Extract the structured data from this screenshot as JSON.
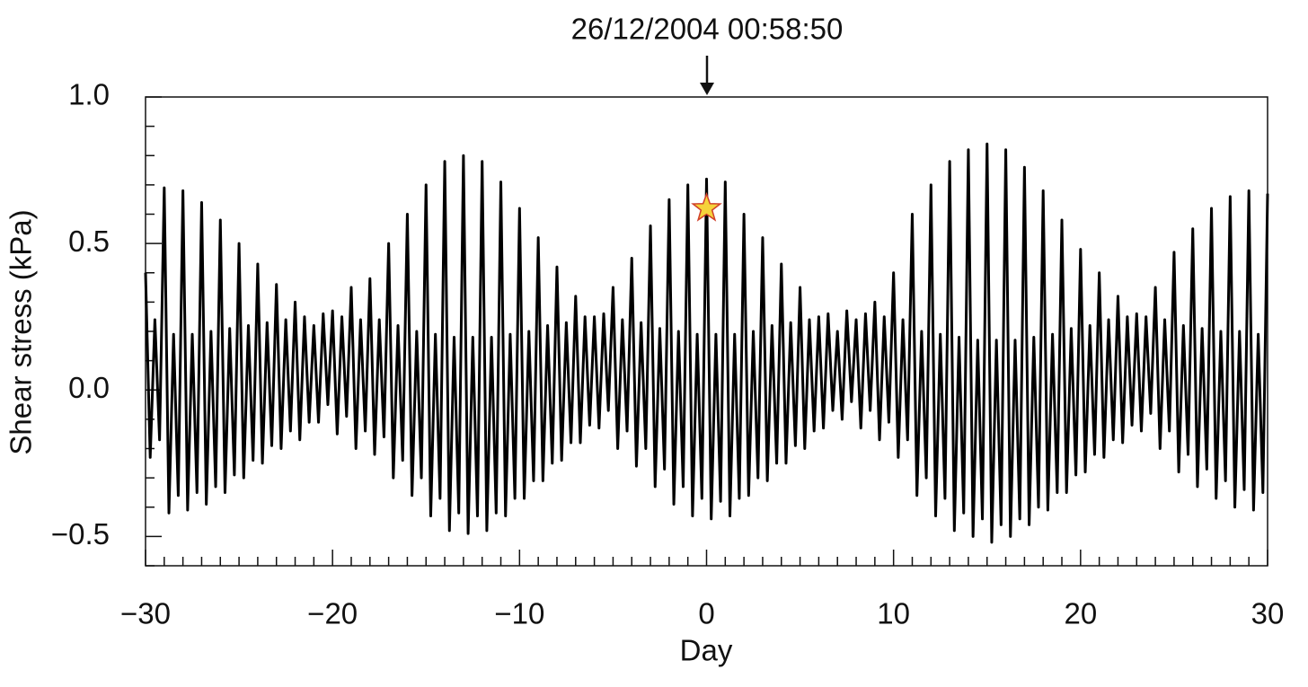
{
  "chart_data": {
    "type": "line",
    "annotation": "26/12/2004 00:58:50",
    "xlabel": "Day",
    "ylabel": "Shear stress (kPa)",
    "xlim": [
      -30,
      30
    ],
    "ylim": [
      -0.6,
      1.0
    ],
    "xticks": [
      {
        "value": -30,
        "label": "−30"
      },
      {
        "value": -20,
        "label": "−20"
      },
      {
        "value": -10,
        "label": "−10"
      },
      0,
      10,
      20,
      30
    ],
    "yticks": [
      {
        "value": -0.5,
        "label": "−0.5"
      },
      {
        "value": 0,
        "label": "0.0"
      },
      0.5,
      {
        "value": 1.0,
        "label": "1.0"
      }
    ],
    "xminorticks": [
      -29,
      -28,
      -27,
      -26,
      -25,
      -24,
      -23,
      -22,
      -21,
      -19,
      -18,
      -17,
      -16,
      -15,
      -14,
      -13,
      -12,
      -11,
      -9,
      -8,
      -7,
      -6,
      -5,
      -4,
      -3,
      -2,
      -1,
      1,
      2,
      3,
      4,
      5,
      6,
      7,
      8,
      9,
      11,
      12,
      13,
      14,
      15,
      16,
      17,
      18,
      19,
      21,
      22,
      23,
      24,
      25,
      26,
      27,
      28,
      29
    ],
    "yminorticks": [
      -0.6,
      -0.4,
      -0.3,
      -0.2,
      -0.1,
      0.1,
      0.2,
      0.3,
      0.4,
      0.6,
      0.7,
      0.8,
      0.9
    ],
    "color": "#000000",
    "event": {
      "x": 0,
      "y": 0.62,
      "color": "#f5d33a"
    },
    "x": [
      -30,
      -29.75,
      -29.5,
      -29.25,
      -29,
      -28.75,
      -28.5,
      -28.25,
      -28,
      -27.75,
      -27.5,
      -27.25,
      -27,
      -26.75,
      -26.5,
      -26.25,
      -26,
      -25.75,
      -25.5,
      -25.25,
      -25,
      -24.75,
      -24.5,
      -24.25,
      -24,
      -23.75,
      -23.5,
      -23.25,
      -23,
      -22.75,
      -22.5,
      -22.25,
      -22,
      -21.75,
      -21.5,
      -21.25,
      -21,
      -20.75,
      -20.5,
      -20.25,
      -20,
      -19.75,
      -19.5,
      -19.25,
      -19,
      -18.75,
      -18.5,
      -18.25,
      -18,
      -17.75,
      -17.5,
      -17.25,
      -17,
      -16.75,
      -16.5,
      -16.25,
      -16,
      -15.75,
      -15.5,
      -15.25,
      -15,
      -14.75,
      -14.5,
      -14.25,
      -14,
      -13.75,
      -13.5,
      -13.25,
      -13,
      -12.75,
      -12.5,
      -12.25,
      -12,
      -11.75,
      -11.5,
      -11.25,
      -11,
      -10.75,
      -10.5,
      -10.25,
      -10,
      -9.75,
      -9.5,
      -9.25,
      -9,
      -8.75,
      -8.5,
      -8.25,
      -8,
      -7.75,
      -7.5,
      -7.25,
      -7,
      -6.75,
      -6.5,
      -6.25,
      -6,
      -5.75,
      -5.5,
      -5.25,
      -5,
      -4.75,
      -4.5,
      -4.25,
      -4,
      -3.75,
      -3.5,
      -3.25,
      -3,
      -2.75,
      -2.5,
      -2.25,
      -2,
      -1.75,
      -1.5,
      -1.25,
      -1,
      -0.75,
      -0.5,
      -0.25,
      0,
      0.25,
      0.5,
      0.75,
      1,
      1.25,
      1.5,
      1.75,
      2,
      2.25,
      2.5,
      2.75,
      3,
      3.25,
      3.5,
      3.75,
      4,
      4.25,
      4.5,
      4.75,
      5,
      5.25,
      5.5,
      5.75,
      6,
      6.25,
      6.5,
      6.75,
      7,
      7.25,
      7.5,
      7.75,
      8,
      8.25,
      8.5,
      8.75,
      9,
      9.25,
      9.5,
      9.75,
      10,
      10.25,
      10.5,
      10.75,
      11,
      11.25,
      11.5,
      11.75,
      12,
      12.25,
      12.5,
      12.75,
      13,
      13.25,
      13.5,
      13.75,
      14,
      14.25,
      14.5,
      14.75,
      15,
      15.25,
      15.5,
      15.75,
      16,
      16.25,
      16.5,
      16.75,
      17,
      17.25,
      17.5,
      17.75,
      18,
      18.25,
      18.5,
      18.75,
      19,
      19.25,
      19.5,
      19.75,
      20,
      20.25,
      20.5,
      20.75,
      21,
      21.25,
      21.5,
      21.75,
      22,
      22.25,
      22.5,
      22.75,
      23,
      23.25,
      23.5,
      23.75,
      24,
      24.25,
      24.5,
      24.75,
      25,
      25.25,
      25.5,
      25.75,
      26,
      26.25,
      26.5,
      26.75,
      27,
      27.25,
      27.5,
      27.75,
      28,
      28.25,
      28.5,
      28.75,
      29,
      29.25,
      29.5,
      29.75,
      30
    ],
    "values": [
      0.4,
      -0.23,
      0.24,
      -0.17,
      0.69,
      -0.42,
      0.19,
      -0.36,
      0.68,
      -0.41,
      0.19,
      -0.35,
      0.64,
      -0.39,
      0.2,
      -0.33,
      0.58,
      -0.35,
      0.21,
      -0.29,
      0.5,
      -0.3,
      0.22,
      -0.24,
      0.43,
      -0.25,
      0.23,
      -0.19,
      0.36,
      -0.2,
      0.24,
      -0.14,
      0.3,
      -0.17,
      0.25,
      -0.11,
      0.22,
      -0.11,
      0.26,
      -0.05,
      0.27,
      -0.15,
      0.25,
      -0.09,
      0.35,
      -0.2,
      0.24,
      -0.14,
      0.38,
      -0.22,
      0.24,
      -0.16,
      0.5,
      -0.3,
      0.22,
      -0.24,
      0.6,
      -0.36,
      0.2,
      -0.3,
      0.7,
      -0.43,
      0.19,
      -0.37,
      0.78,
      -0.48,
      0.18,
      -0.42,
      0.8,
      -0.49,
      0.18,
      -0.43,
      0.78,
      -0.48,
      0.18,
      -0.42,
      0.71,
      -0.43,
      0.19,
      -0.37,
      0.62,
      -0.37,
      0.2,
      -0.31,
      0.52,
      -0.31,
      0.22,
      -0.25,
      0.42,
      -0.24,
      0.23,
      -0.18,
      0.32,
      -0.18,
      0.25,
      -0.12,
      0.25,
      -0.13,
      0.26,
      -0.07,
      0.35,
      -0.2,
      0.24,
      -0.14,
      0.45,
      -0.26,
      0.23,
      -0.2,
      0.56,
      -0.33,
      0.21,
      -0.27,
      0.65,
      -0.39,
      0.2,
      -0.33,
      0.7,
      -0.43,
      0.19,
      -0.37,
      0.72,
      -0.44,
      0.19,
      -0.38,
      0.71,
      -0.43,
      0.19,
      -0.37,
      0.6,
      -0.36,
      0.2,
      -0.3,
      0.52,
      -0.31,
      0.22,
      -0.25,
      0.43,
      -0.25,
      0.23,
      -0.19,
      0.35,
      -0.2,
      0.24,
      -0.14,
      0.25,
      -0.13,
      0.26,
      -0.07,
      0.2,
      -0.1,
      0.27,
      -0.04,
      0.24,
      -0.13,
      0.26,
      -0.07,
      0.3,
      -0.17,
      0.25,
      -0.11,
      0.4,
      -0.23,
      0.24,
      -0.17,
      0.6,
      -0.36,
      0.2,
      -0.3,
      0.7,
      -0.43,
      0.19,
      -0.37,
      0.78,
      -0.48,
      0.18,
      -0.42,
      0.82,
      -0.5,
      0.17,
      -0.44,
      0.84,
      -0.52,
      0.17,
      -0.46,
      0.82,
      -0.5,
      0.17,
      -0.44,
      0.76,
      -0.46,
      0.18,
      -0.4,
      0.68,
      -0.41,
      0.19,
      -0.35,
      0.58,
      -0.35,
      0.21,
      -0.29,
      0.48,
      -0.28,
      0.22,
      -0.22,
      0.4,
      -0.23,
      0.24,
      -0.17,
      0.32,
      -0.18,
      0.25,
      -0.12,
      0.26,
      -0.14,
      0.25,
      -0.08,
      0.35,
      -0.2,
      0.24,
      -0.14,
      0.47,
      -0.28,
      0.22,
      -0.22,
      0.55,
      -0.33,
      0.21,
      -0.27,
      0.62,
      -0.37,
      0.2,
      -0.31,
      0.66,
      -0.4,
      0.2,
      -0.34,
      0.68,
      -0.41,
      0.19,
      -0.35,
      0.67
    ]
  }
}
